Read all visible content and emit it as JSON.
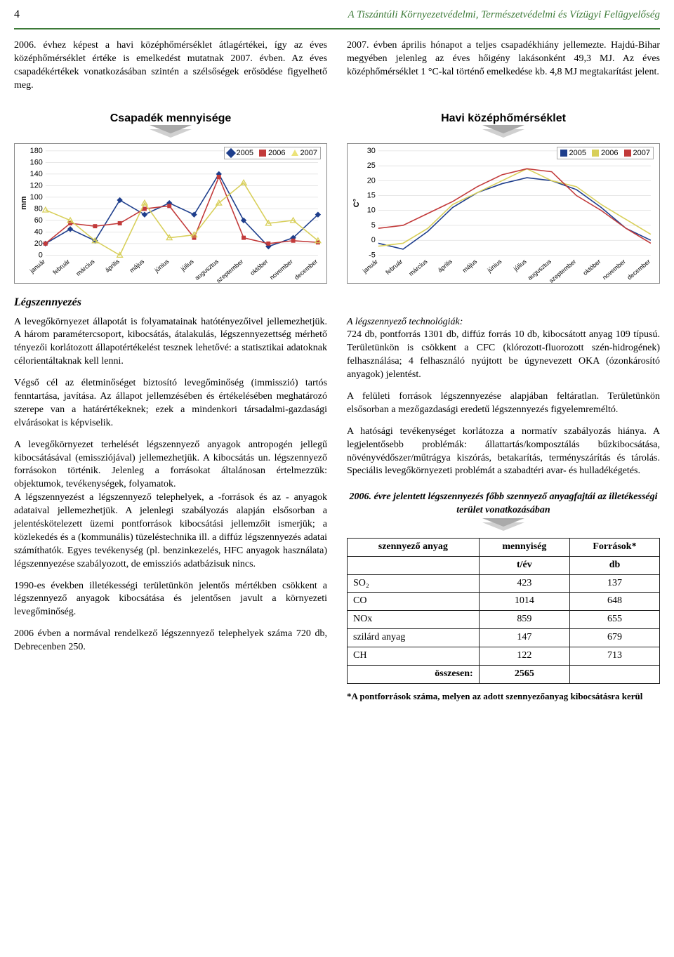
{
  "page_number": "4",
  "org_title": "A Tiszántúli Környezetvédelmi, Természetvédelmi és Vízügyi Felügyelőség",
  "intro": {
    "left": "2006. évhez képest a havi középhőmérséklet átlagértékei, így az éves középhőmérséklet értéke is emelkedést mutatnak 2007. évben. Az éves csapadékértékek vonatkozásában szintén a szélsőségek erősödése figyelhető meg.",
    "right": "2007. évben április hónapot a teljes csapadékhiány jellemezte. Hajdú-Bihar megyében jelenleg az éves hőigény lakásonként 49,3 MJ. Az éves középhőmérséklet 1 °C-kal történő emelkedése kb. 4,8 MJ megtakarítást jelent."
  },
  "charts": {
    "precip_title": "Csapadék mennyisége",
    "temp_title": "Havi középhőmérséklet",
    "legend": {
      "y2005": "2005",
      "y2006": "2006",
      "y2007": "2007"
    },
    "colors": {
      "y2005": "#1e3e8c",
      "y2006": "#c23a3a",
      "y2007": "#d8cf5a"
    },
    "months": [
      "január",
      "február",
      "március",
      "április",
      "május",
      "június",
      "július",
      "augusztus",
      "szeptember",
      "október",
      "november",
      "december"
    ],
    "precip": {
      "y_label": "mm",
      "ymin": 0,
      "ymax": 180,
      "ytick": 20,
      "series": {
        "2005": [
          20,
          45,
          25,
          95,
          70,
          90,
          70,
          140,
          60,
          15,
          30,
          70
        ],
        "2006": [
          20,
          55,
          50,
          55,
          80,
          85,
          30,
          135,
          30,
          20,
          25,
          22
        ],
        "2007": [
          78,
          60,
          25,
          0,
          90,
          30,
          35,
          90,
          125,
          55,
          60,
          25
        ]
      },
      "marker": {
        "2005": "diamond",
        "2006": "square",
        "2007": "triangle"
      }
    },
    "temp": {
      "y_label": "C°",
      "ymin": -5,
      "ymax": 30,
      "ytick": 5,
      "series": {
        "2005": [
          -1,
          -3,
          3,
          11,
          16,
          19,
          21,
          20,
          17,
          11,
          4,
          0
        ],
        "2006": [
          -2,
          -1,
          4,
          12,
          16,
          20,
          24,
          20,
          18,
          12,
          7,
          2
        ],
        "2007": [
          4,
          5,
          9,
          13,
          18,
          22,
          24,
          23,
          15,
          10,
          4,
          -1
        ]
      }
    }
  },
  "air_section_title": "Légszennyezés",
  "body_left": {
    "p1": "A levegőkörnyezet állapotát is folyamatainak hatótényezőivel jellemezhetjük. A három paramétercsoport, kibocsátás, átalakulás, légszennyezettség mérhető tényezői korlátozott állapotértékelést tesznek lehetővé: a statisztikai adatoknak célorientáltaknak kell lenni.",
    "p2": "Végső cél az életminőséget biztosító levegőminőség (immisszió) tartós fenntartása, javítása. Az állapot jellemzésében és értékelésében meghatározó szerepe van a határértékeknek; ezek a mindenkori társadalmi-gazdasági elvárásokat is képviselik.",
    "p3_a": "A levegőkörnyezet terhelését légszennyező anyagok antropogén jellegű kibocsátásával (emissziójával) jellemezhetjük. A kibocsátás un. légszennyező forrásokon történik. Jelenleg a forrásokat általánosan értelmezzük: objektumok, tevékenységek, folyamatok.",
    "p3_b": "A légszennyezést a légszennyező telephelyek, a -források és az - anyagok adataival jellemezhetjük. A jelenlegi szabályozás alapján elsősorban a jelentéskötelezett üzemi pontforrások kibocsátási jellemzőit ismerjük; a közlekedés és a (kommunális) tüzeléstechnika ill. a diffúz légszennyezés adatai számíthatók. Egyes tevékenység (pl. benzinkezelés, HFC anyagok használata) légszennyezése szabályozott, de emissziós adatbázisuk nincs.",
    "p4": "1990-es években illetékességi területünkön jelentős mértékben csökkent a légszennyező anyagok kibocsátása és jelentősen javult a környezeti levegőminőség.",
    "p5": "2006 évben a normával rendelkező légszennyező telephelyek száma 720 db, Debrecenben 250."
  },
  "body_right": {
    "heading1": "A légszennyező technológiák:",
    "p1": "724 db, pontforrás 1301 db, diffúz forrás 10 db, kibocsátott anyag 109 típusú. Területünkön is csökkent a CFC (klórozott-fluorozott szén-hidrogének) felhasználása; 4 felhasználó nyújtott be úgynevezett OKA (ózonkárosító anyagok) jelentést.",
    "p2": "A felületi források légszennyezése alapjában feltáratlan. Területünkön elsősorban a mezőgazdasági eredetű légszennyezés figyelemreméltó.",
    "p3": "A hatósági tevékenységet korlátozza a normatív szabályozás hiánya. A legjelentősebb problémák: állattartás/komposztálás bűzkibocsátása, növényvédőszer/műtrágya kiszórás, betakarítás, terményszárítás és tárolás. Speciális levegőkörnyezeti problémát a szabadtéri avar- és hulladékégetés.",
    "table_title": "2006. évre jelentett légszennyezés főbb szennyező anyagfajtái az illetékességi terület vonatkozásában",
    "table": {
      "headers": {
        "anyag": "szennyező anyag",
        "menny": "mennyiség",
        "forras": "Források*",
        "unit_t": "t/év",
        "unit_db": "db"
      },
      "rows": [
        {
          "name": "SO₂",
          "t": "423",
          "db": "137"
        },
        {
          "name": "CO",
          "t": "1014",
          "db": "648"
        },
        {
          "name": "NOx",
          "t": "859",
          "db": "655"
        },
        {
          "name": "szilárd anyag",
          "t": "147",
          "db": "679"
        },
        {
          "name": "CH",
          "t": "122",
          "db": "713"
        }
      ],
      "total_label": "összesen:",
      "total_val": "2565"
    },
    "footnote": "*A pontforrások száma, melyen az adott szennyezőanyag kibocsátásra kerül"
  }
}
